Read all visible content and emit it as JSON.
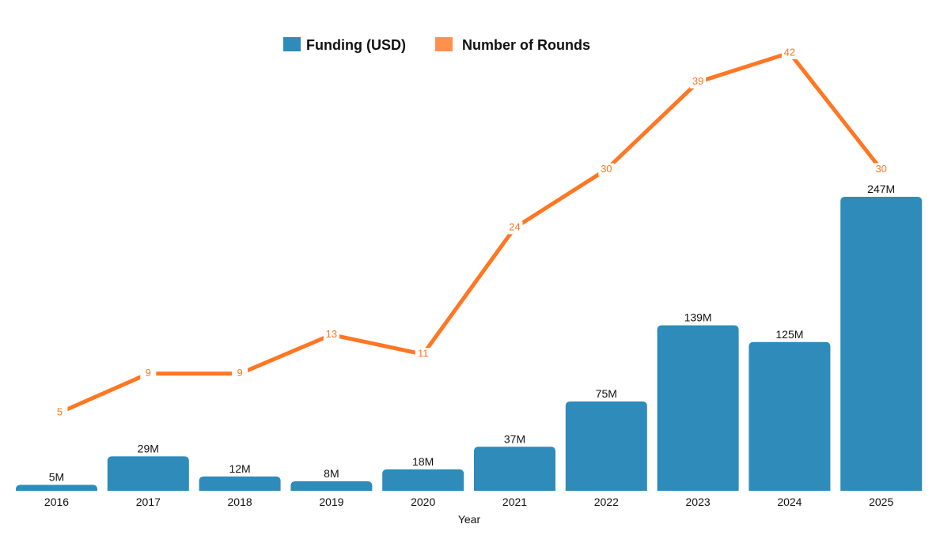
{
  "chart_data": {
    "type": "bar+line",
    "title": "",
    "xlabel": "Year",
    "ylabel": "",
    "categories": [
      "2016",
      "2017",
      "2018",
      "2019",
      "2020",
      "2021",
      "2022",
      "2023",
      "2024",
      "2025"
    ],
    "series": [
      {
        "name": "Funding (USD)",
        "type": "bar",
        "values": [
          5,
          29,
          12,
          8,
          18,
          37,
          75,
          139,
          125,
          247
        ],
        "labels": [
          "5M",
          "29M",
          "12M",
          "8M",
          "18M",
          "37M",
          "75M",
          "139M",
          "125M",
          "247M"
        ],
        "color": "#2e8bba",
        "legend_color": "#2e8bba"
      },
      {
        "name": "Number of Rounds",
        "type": "line",
        "values": [
          5,
          9,
          9,
          13,
          11,
          24,
          30,
          39,
          42,
          30
        ],
        "labels": [
          "5",
          "9",
          "9",
          "13",
          "11",
          "24",
          "30",
          "39",
          "42",
          "30"
        ],
        "color": "#ff7722",
        "legend_color": "#ff914d"
      }
    ],
    "legend_position": "top-center",
    "grid": false
  }
}
